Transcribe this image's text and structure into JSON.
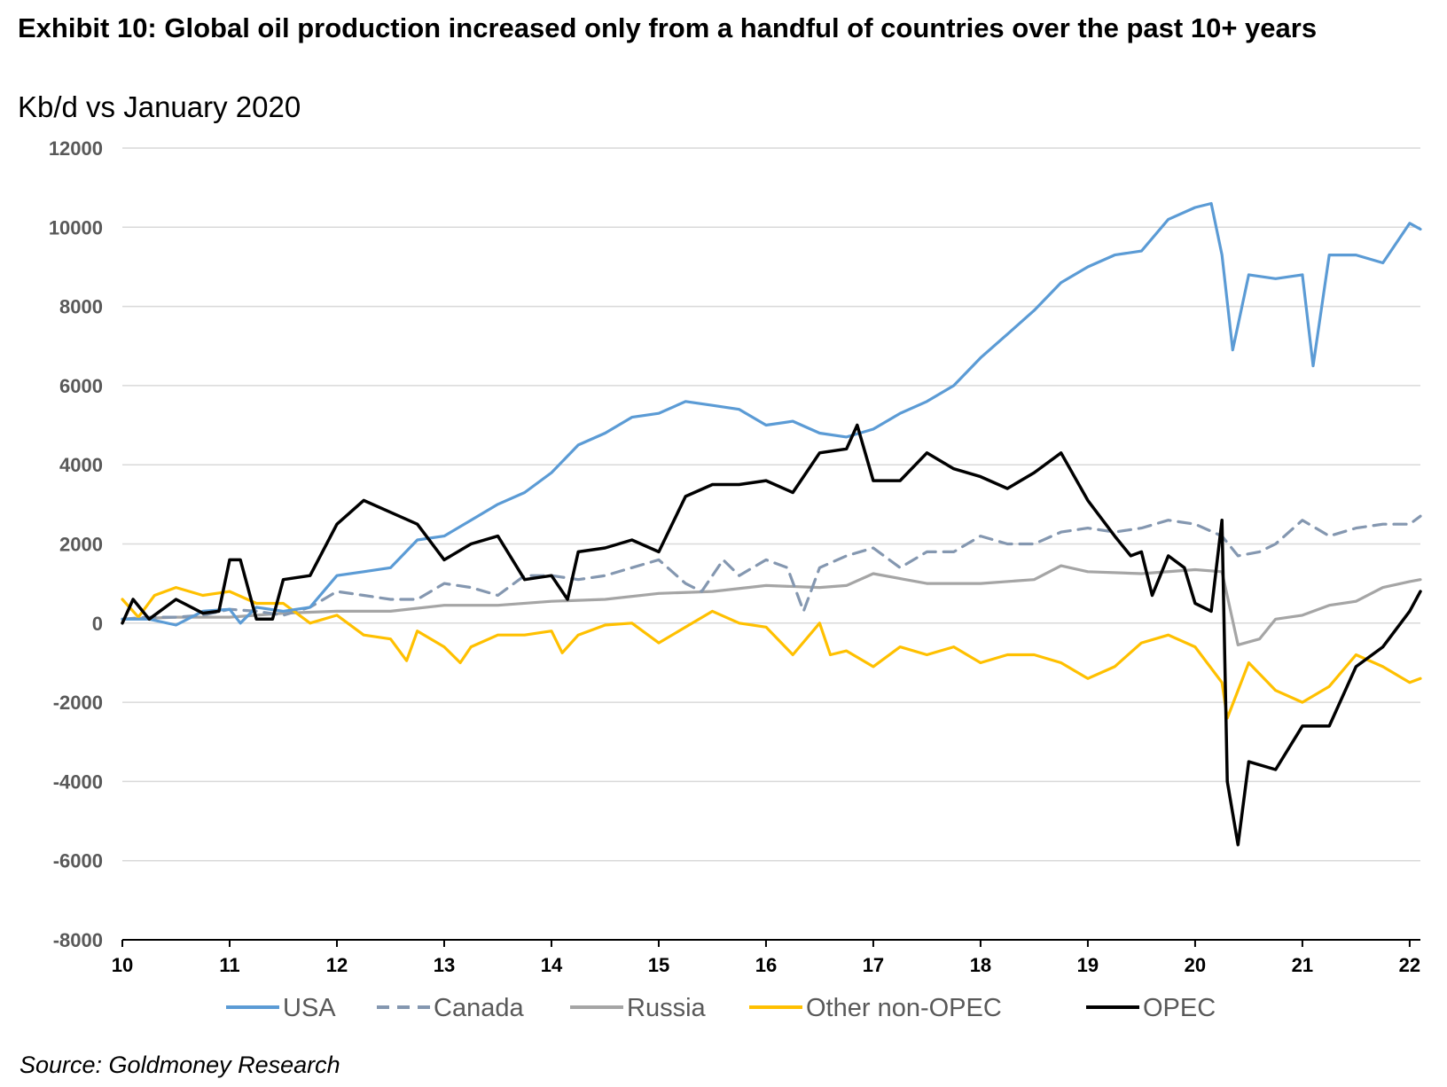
{
  "header": {
    "title": "Exhibit 10: Global oil production increased only from a handful of countries over the past 10+ years",
    "subtitle": "Kb/d vs January 2020"
  },
  "footer": {
    "source": "Source: Goldmoney Research"
  },
  "chart_data": {
    "type": "line",
    "title": "Exhibit 10: Global oil production increased only from a handful of countries over the past 10+ years",
    "subtitle": "Kb/d vs January 2020",
    "xlabel": "",
    "ylabel": "",
    "x_ticks": [
      "10",
      "11",
      "12",
      "13",
      "14",
      "15",
      "16",
      "17",
      "18",
      "19",
      "20",
      "21",
      "22"
    ],
    "xlim": [
      2010.0,
      2022.1
    ],
    "ylim": [
      -8000,
      12000
    ],
    "y_ticks": [
      -8000,
      -6000,
      -4000,
      -2000,
      0,
      2000,
      4000,
      6000,
      8000,
      10000,
      12000
    ],
    "grid": "horizontal",
    "legend_position": "bottom",
    "series": [
      {
        "name": "USA",
        "color": "#5B9BD5",
        "style": "solid",
        "x": [
          2010.0,
          2010.25,
          2010.5,
          2010.75,
          2011.0,
          2011.1,
          2011.25,
          2011.5,
          2011.75,
          2012.0,
          2012.25,
          2012.5,
          2012.75,
          2013.0,
          2013.25,
          2013.5,
          2013.75,
          2014.0,
          2014.25,
          2014.5,
          2014.75,
          2015.0,
          2015.25,
          2015.5,
          2015.75,
          2016.0,
          2016.25,
          2016.5,
          2016.75,
          2017.0,
          2017.25,
          2017.5,
          2017.75,
          2018.0,
          2018.25,
          2018.5,
          2018.75,
          2019.0,
          2019.25,
          2019.5,
          2019.75,
          2020.0,
          2020.15,
          2020.25,
          2020.35,
          2020.5,
          2020.75,
          2021.0,
          2021.1,
          2021.25,
          2021.5,
          2021.75,
          2022.0,
          2022.1
        ],
        "y": [
          100,
          100,
          -50,
          300,
          350,
          0,
          400,
          300,
          400,
          1200,
          1300,
          1400,
          2100,
          2200,
          2600,
          3000,
          3300,
          3800,
          4500,
          4800,
          5200,
          5300,
          5600,
          5500,
          5400,
          5000,
          5100,
          4800,
          4700,
          4900,
          5300,
          5600,
          6000,
          6700,
          7300,
          7900,
          8600,
          9000,
          9300,
          9400,
          10200,
          10500,
          10600,
          9300,
          6900,
          8800,
          8700,
          8800,
          6500,
          9300,
          9300,
          9100,
          10100,
          9950
        ]
      },
      {
        "name": "Canada",
        "color": "#8497B0",
        "style": "dashed",
        "x": [
          2010.0,
          2010.25,
          2010.5,
          2010.75,
          2011.0,
          2011.25,
          2011.5,
          2011.75,
          2012.0,
          2012.25,
          2012.5,
          2012.75,
          2013.0,
          2013.25,
          2013.5,
          2013.75,
          2014.0,
          2014.25,
          2014.5,
          2014.75,
          2015.0,
          2015.25,
          2015.4,
          2015.6,
          2015.75,
          2016.0,
          2016.2,
          2016.35,
          2016.5,
          2016.75,
          2017.0,
          2017.25,
          2017.5,
          2017.75,
          2018.0,
          2018.25,
          2018.5,
          2018.75,
          2019.0,
          2019.25,
          2019.5,
          2019.75,
          2020.0,
          2020.25,
          2020.4,
          2020.6,
          2020.75,
          2021.0,
          2021.25,
          2021.5,
          2021.75,
          2022.0,
          2022.1
        ],
        "y": [
          100,
          150,
          150,
          200,
          350,
          300,
          200,
          400,
          800,
          700,
          600,
          600,
          1000,
          900,
          700,
          1200,
          1200,
          1100,
          1200,
          1400,
          1600,
          1000,
          800,
          1600,
          1200,
          1600,
          1400,
          300,
          1400,
          1700,
          1900,
          1400,
          1800,
          1800,
          2200,
          2000,
          2000,
          2300,
          2400,
          2300,
          2400,
          2600,
          2500,
          2200,
          1700,
          1800,
          2000,
          2600,
          2200,
          2400,
          2500,
          2500,
          2700
        ]
      },
      {
        "name": "Russia",
        "color": "#A5A5A5",
        "style": "solid",
        "x": [
          2010.0,
          2010.5,
          2011.0,
          2011.5,
          2012.0,
          2012.5,
          2013.0,
          2013.5,
          2014.0,
          2014.5,
          2015.0,
          2015.5,
          2016.0,
          2016.5,
          2016.75,
          2017.0,
          2017.5,
          2018.0,
          2018.5,
          2018.75,
          2019.0,
          2019.5,
          2020.0,
          2020.25,
          2020.4,
          2020.6,
          2020.75,
          2021.0,
          2021.25,
          2021.5,
          2021.75,
          2022.0,
          2022.1
        ],
        "y": [
          100,
          150,
          150,
          250,
          300,
          300,
          450,
          450,
          550,
          600,
          750,
          800,
          950,
          900,
          950,
          1250,
          1000,
          1000,
          1100,
          1450,
          1300,
          1250,
          1350,
          1300,
          -550,
          -400,
          100,
          200,
          450,
          550,
          900,
          1050,
          1100
        ]
      },
      {
        "name": "Other non-OPEC",
        "color": "#FFC000",
        "style": "solid",
        "x": [
          2010.0,
          2010.15,
          2010.3,
          2010.5,
          2010.75,
          2011.0,
          2011.25,
          2011.5,
          2011.75,
          2012.0,
          2012.25,
          2012.5,
          2012.65,
          2012.75,
          2013.0,
          2013.15,
          2013.25,
          2013.5,
          2013.75,
          2014.0,
          2014.1,
          2014.25,
          2014.5,
          2014.75,
          2015.0,
          2015.25,
          2015.5,
          2015.75,
          2016.0,
          2016.25,
          2016.5,
          2016.6,
          2016.75,
          2017.0,
          2017.25,
          2017.5,
          2017.75,
          2018.0,
          2018.25,
          2018.5,
          2018.75,
          2019.0,
          2019.25,
          2019.5,
          2019.75,
          2020.0,
          2020.25,
          2020.3,
          2020.5,
          2020.75,
          2021.0,
          2021.25,
          2021.5,
          2021.75,
          2022.0,
          2022.1
        ],
        "y": [
          600,
          150,
          700,
          900,
          700,
          800,
          500,
          500,
          0,
          200,
          -300,
          -400,
          -950,
          -200,
          -600,
          -1000,
          -600,
          -300,
          -300,
          -200,
          -750,
          -300,
          -50,
          0,
          -500,
          -100,
          300,
          0,
          -100,
          -800,
          0,
          -800,
          -700,
          -1100,
          -600,
          -800,
          -600,
          -1000,
          -800,
          -800,
          -1000,
          -1400,
          -1100,
          -500,
          -300,
          -600,
          -1500,
          -2400,
          -1000,
          -1700,
          -2000,
          -1600,
          -800,
          -1100,
          -1500,
          -1400
        ]
      },
      {
        "name": "OPEC",
        "color": "#000000",
        "style": "solid",
        "x": [
          2010.0,
          2010.1,
          2010.25,
          2010.5,
          2010.75,
          2010.9,
          2011.0,
          2011.1,
          2011.25,
          2011.4,
          2011.5,
          2011.75,
          2012.0,
          2012.25,
          2012.5,
          2012.75,
          2013.0,
          2013.25,
          2013.5,
          2013.75,
          2014.0,
          2014.15,
          2014.25,
          2014.5,
          2014.75,
          2015.0,
          2015.25,
          2015.5,
          2015.75,
          2016.0,
          2016.25,
          2016.5,
          2016.75,
          2016.85,
          2017.0,
          2017.25,
          2017.5,
          2017.75,
          2018.0,
          2018.25,
          2018.5,
          2018.75,
          2019.0,
          2019.25,
          2019.4,
          2019.5,
          2019.6,
          2019.75,
          2019.9,
          2020.0,
          2020.15,
          2020.25,
          2020.3,
          2020.4,
          2020.5,
          2020.75,
          2021.0,
          2021.25,
          2021.5,
          2021.75,
          2022.0,
          2022.1
        ],
        "y": [
          0,
          600,
          100,
          600,
          250,
          300,
          1600,
          1600,
          100,
          100,
          1100,
          1200,
          2500,
          3100,
          2800,
          2500,
          1600,
          2000,
          2200,
          1100,
          1200,
          600,
          1800,
          1900,
          2100,
          1800,
          3200,
          3500,
          3500,
          3600,
          3300,
          4300,
          4400,
          5000,
          3600,
          3600,
          4300,
          3900,
          3700,
          3400,
          3800,
          4300,
          3100,
          2200,
          1700,
          1800,
          700,
          1700,
          1400,
          500,
          300,
          2600,
          -4000,
          -5600,
          -3500,
          -3700,
          -2600,
          -2600,
          -1100,
          -600,
          300,
          800
        ]
      }
    ]
  }
}
